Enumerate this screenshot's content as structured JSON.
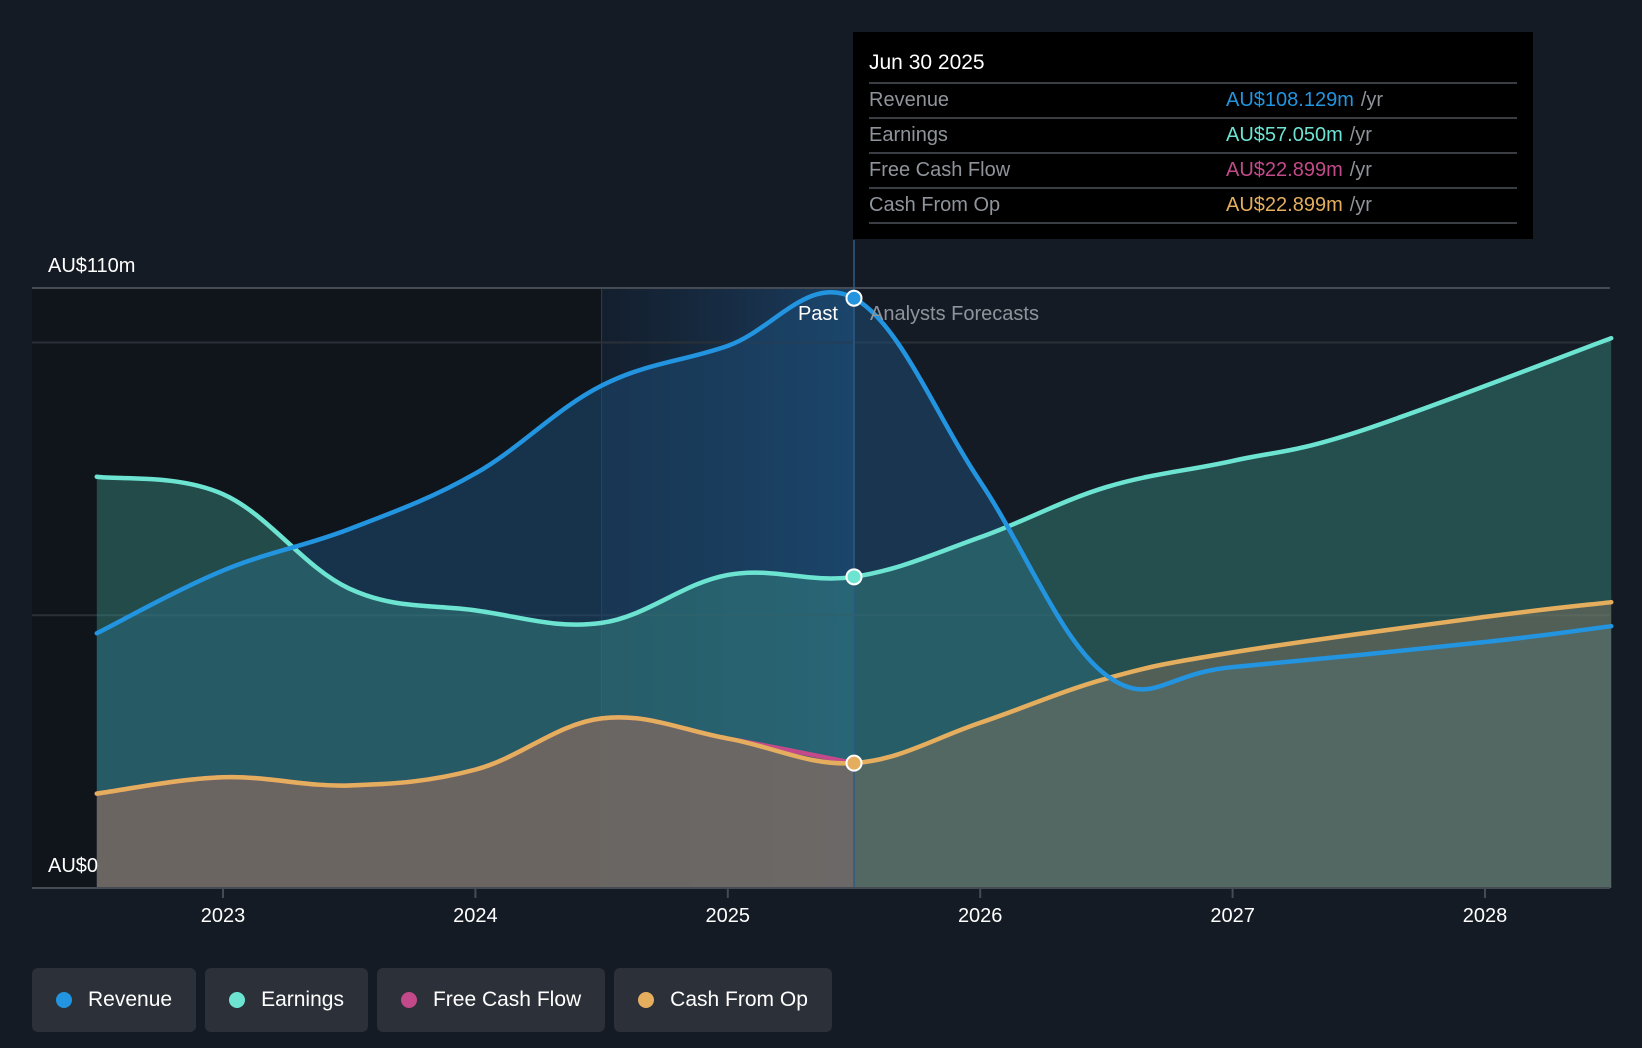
{
  "tooltip": {
    "date": "Jun 30 2025",
    "rows": [
      {
        "label": "Revenue",
        "value": "AU$108.129m",
        "unit": "/yr",
        "color": "#2394df"
      },
      {
        "label": "Earnings",
        "value": "AU$57.050m",
        "unit": "/yr",
        "color": "#6de4d2"
      },
      {
        "label": "Free Cash Flow",
        "value": "AU$22.899m",
        "unit": "/yr",
        "color": "#c24a8a"
      },
      {
        "label": "Cash From Op",
        "value": "AU$22.899m",
        "unit": "/yr",
        "color": "#e5ae5e"
      }
    ]
  },
  "legend": [
    {
      "label": "Revenue",
      "color": "#2394df"
    },
    {
      "label": "Earnings",
      "color": "#6de4d2"
    },
    {
      "label": "Free Cash Flow",
      "color": "#c24a8a"
    },
    {
      "label": "Cash From Op",
      "color": "#e5ae5e"
    }
  ],
  "chart_data": {
    "type": "area",
    "title": "",
    "xlabel": "",
    "ylabel": "",
    "y_tick_labels": [
      "AU$110m",
      "AU$0"
    ],
    "ylim": [
      0,
      110
    ],
    "xlim": [
      2022.3,
      2028.5
    ],
    "x_tick_labels": [
      "2023",
      "2024",
      "2025",
      "2026",
      "2027",
      "2028"
    ],
    "x_ticks": [
      2023,
      2024,
      2025,
      2026,
      2027,
      2028
    ],
    "past_label": "Past",
    "forecast_label": "Analysts Forecasts",
    "divider_x": 2025.5,
    "past_highlight_start": 2024.5,
    "grid": true,
    "legend_position": "bottom-left",
    "series": [
      {
        "name": "Revenue",
        "color": "#2394df",
        "x": [
          2022.5,
          2023.0,
          2023.5,
          2024.0,
          2024.5,
          2025.0,
          2025.5,
          2026.0,
          2026.5,
          2027.0,
          2028.0,
          2028.5
        ],
        "values": [
          46.7,
          58.2,
          65.8,
          76.0,
          92.1,
          99.4,
          108.129,
          74.5,
          39.0,
          40.5,
          45.1,
          48.0
        ]
      },
      {
        "name": "Earnings",
        "color": "#6de4d2",
        "x": [
          2022.5,
          2023.0,
          2023.5,
          2024.0,
          2024.5,
          2025.0,
          2025.5,
          2026.0,
          2026.5,
          2027.0,
          2027.5,
          2028.5
        ],
        "values": [
          75.4,
          72.2,
          54.9,
          50.9,
          48.6,
          57.4,
          57.05,
          64.3,
          73.5,
          78.3,
          83.7,
          100.8
        ]
      },
      {
        "name": "Free Cash Flow",
        "color": "#c24a8a",
        "x": [
          2022.5,
          2023.0,
          2023.5,
          2024.0,
          2024.5,
          2025.0,
          2025.5
        ],
        "values": [
          17.3,
          20.3,
          18.8,
          21.7,
          31.1,
          27.4,
          22.899
        ]
      },
      {
        "name": "Cash From Op",
        "color": "#e5ae5e",
        "x": [
          2022.5,
          2023.0,
          2023.5,
          2024.0,
          2024.5,
          2025.0,
          2025.5,
          2026.0,
          2026.5,
          2027.0,
          2028.0,
          2028.5
        ],
        "values": [
          17.3,
          20.3,
          18.8,
          21.7,
          31.1,
          27.4,
          22.899,
          30.3,
          38.4,
          43.2,
          49.7,
          52.4
        ]
      }
    ]
  }
}
